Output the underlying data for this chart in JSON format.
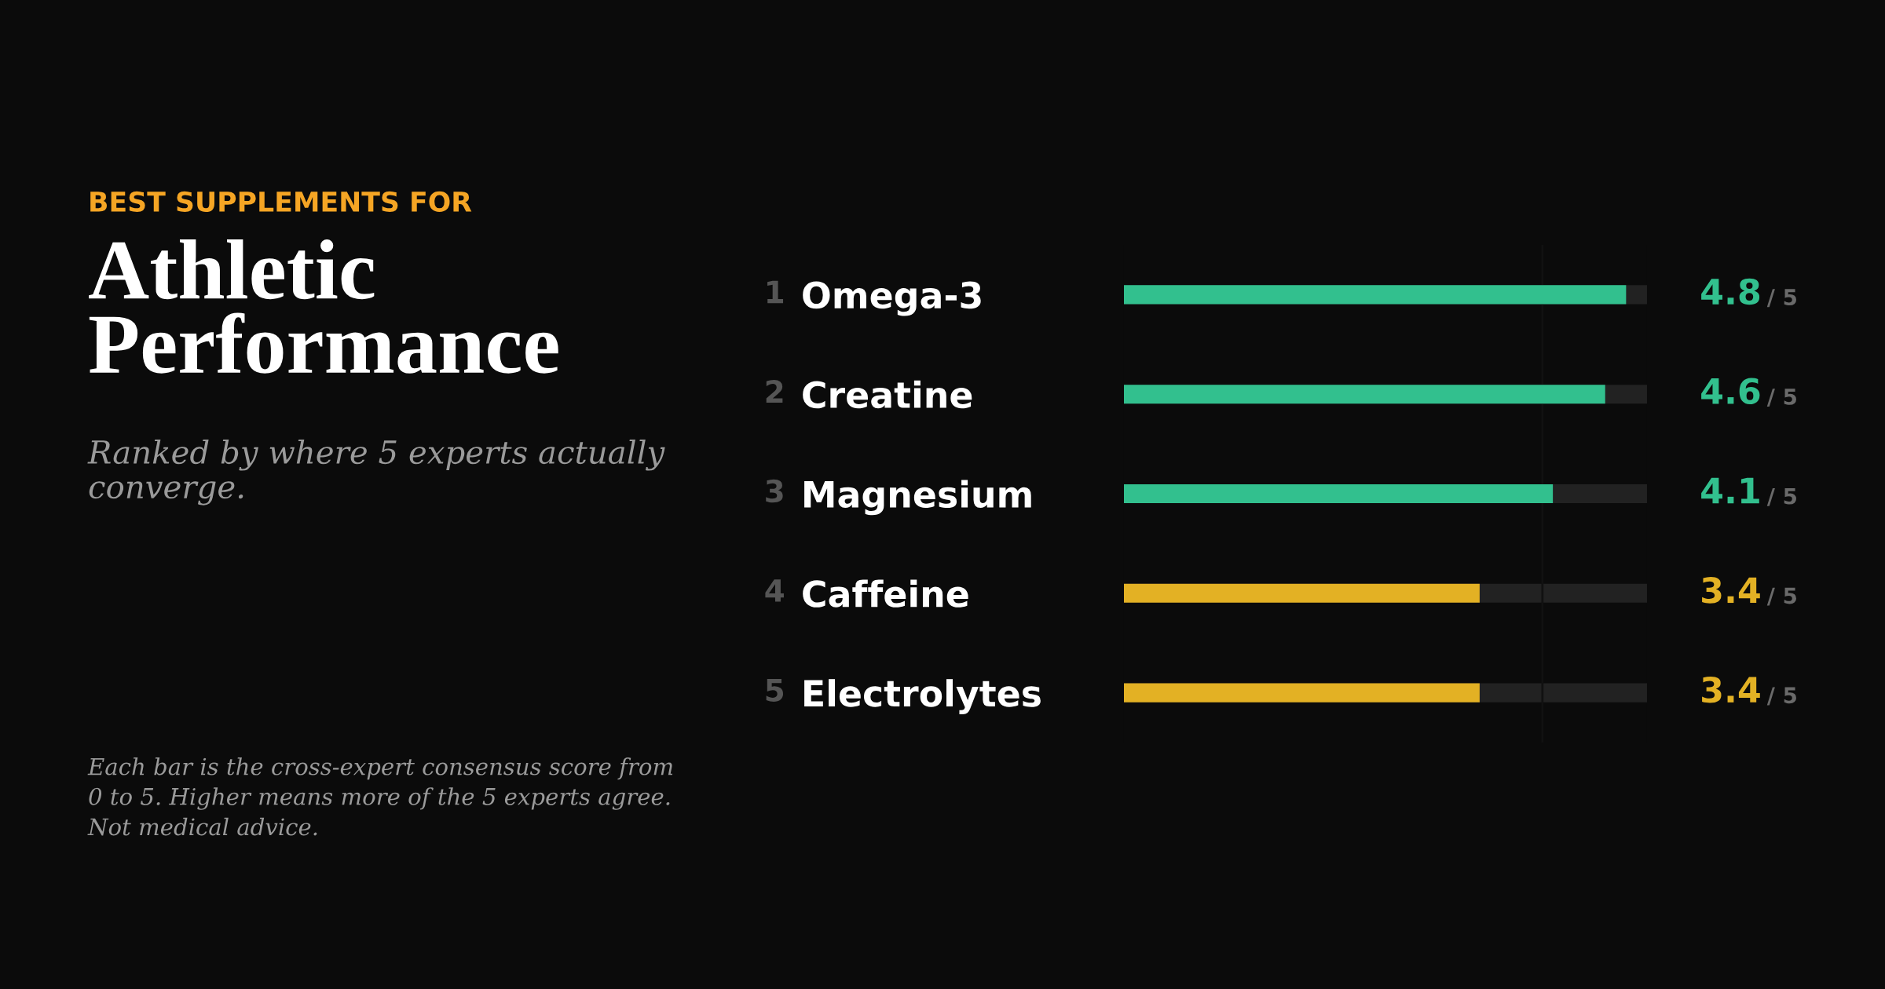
{
  "chart_data": {
    "type": "bar",
    "orientation": "horizontal",
    "title": "Athletic\nPerformance",
    "subtitle": "Ranked by where 5 experts actually\nconverge.",
    "categories": [
      "Omega-3",
      "Creatine",
      "Magnesium",
      "Caffeine",
      "Electrolytes"
    ],
    "values": [
      4.8,
      4.6,
      4.1,
      3.4,
      3.4
    ],
    "colors": [
      "#32c08e",
      "#32c08e",
      "#32c08e",
      "#e3b124",
      "#e3b124"
    ],
    "data_labels": true,
    "xlim": [
      0,
      5
    ],
    "ref_lines": [
      {
        "axis": "x",
        "value": 4,
        "color": "#111111"
      }
    ],
    "tick_labels": "y",
    "grid": false,
    "legend": false,
    "annotations": [
      "BEST SUPPLEMENTS FOR",
      "Each bar is the cross-expert consensus score from\n0 to 5. Higher means more of the 5 experts agree.\nNot medical advice.",
      "1",
      "2",
      "3",
      "4",
      "5",
      "/ 5",
      "/ 5",
      "/ 5",
      "/ 5",
      "/ 5"
    ]
  }
}
